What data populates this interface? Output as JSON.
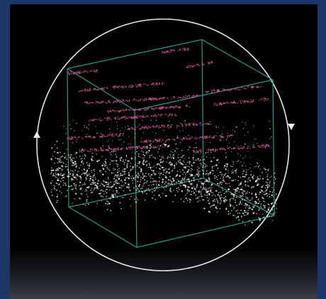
{
  "viewer": {
    "rotate_left_icon": "triangle-up",
    "rotate_right_icon": "triangle-down"
  },
  "colors": {
    "frame": "#1c3667",
    "background": "#000000",
    "box_edges": "#1f9c8a",
    "orbit_ring": "#e6e6e6",
    "points_dense": "#e8e8e8",
    "points_layers": "#c2508a"
  }
}
